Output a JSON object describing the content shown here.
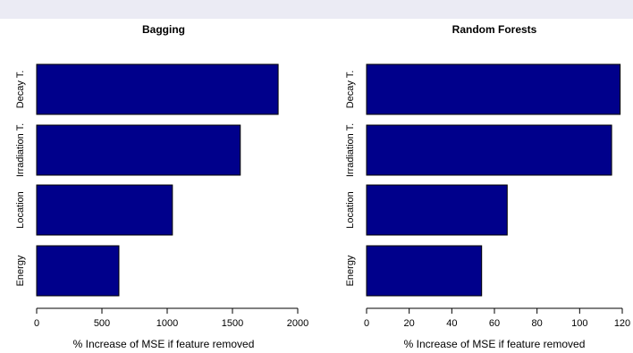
{
  "chart_data": [
    {
      "type": "bar",
      "orientation": "horizontal",
      "title": "Bagging",
      "xlabel": "% Increase of MSE if feature removed",
      "ylabel": "",
      "categories": [
        "Decay T.",
        "Irradiation T.",
        "Location",
        "Energy"
      ],
      "values": [
        1850,
        1560,
        1040,
        630
      ],
      "xlim": [
        0,
        2000
      ],
      "xticks": [
        0,
        500,
        1000,
        1500,
        2000
      ],
      "bar_color": "#00008b",
      "grid": false
    },
    {
      "type": "bar",
      "orientation": "horizontal",
      "title": "Random Forests",
      "xlabel": "% Increase of MSE if feature removed",
      "ylabel": "",
      "categories": [
        "Decay T.",
        "Irradiation T.",
        "Location",
        "Energy"
      ],
      "values": [
        119,
        115,
        66,
        54
      ],
      "xlim": [
        0,
        120
      ],
      "xticks": [
        0,
        20,
        40,
        60,
        80,
        100,
        120
      ],
      "bar_color": "#00008b",
      "grid": false
    }
  ]
}
